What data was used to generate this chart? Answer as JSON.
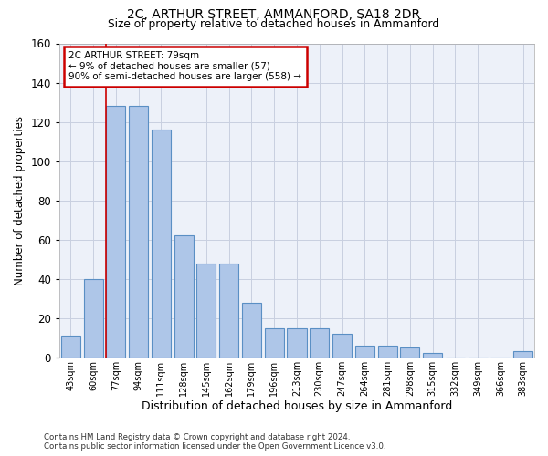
{
  "title_line1": "2C, ARTHUR STREET, AMMANFORD, SA18 2DR",
  "title_line2": "Size of property relative to detached houses in Ammanford",
  "xlabel": "Distribution of detached houses by size in Ammanford",
  "ylabel": "Number of detached properties",
  "categories": [
    "43sqm",
    "60sqm",
    "77sqm",
    "94sqm",
    "111sqm",
    "128sqm",
    "145sqm",
    "162sqm",
    "179sqm",
    "196sqm",
    "213sqm",
    "230sqm",
    "247sqm",
    "264sqm",
    "281sqm",
    "298sqm",
    "315sqm",
    "332sqm",
    "349sqm",
    "366sqm",
    "383sqm"
  ],
  "values": [
    11,
    40,
    128,
    128,
    116,
    62,
    48,
    48,
    28,
    15,
    15,
    15,
    12,
    6,
    6,
    5,
    2,
    0,
    0,
    0,
    3
  ],
  "bar_color": "#aec6e8",
  "bar_edge_color": "#5a8fc4",
  "ylim": [
    0,
    160
  ],
  "yticks": [
    0,
    20,
    40,
    60,
    80,
    100,
    120,
    140,
    160
  ],
  "red_line_bar_index": 2,
  "annotation_title": "2C ARTHUR STREET: 79sqm",
  "annotation_line1": "← 9% of detached houses are smaller (57)",
  "annotation_line2": "90% of semi-detached houses are larger (558) →",
  "annotation_box_facecolor": "#ffffff",
  "annotation_box_edgecolor": "#cc0000",
  "footer_line1": "Contains HM Land Registry data © Crown copyright and database right 2024.",
  "footer_line2": "Contains public sector information licensed under the Open Government Licence v3.0.",
  "plot_bg_color": "#edf1f9",
  "grid_color": "#c8cfe0"
}
